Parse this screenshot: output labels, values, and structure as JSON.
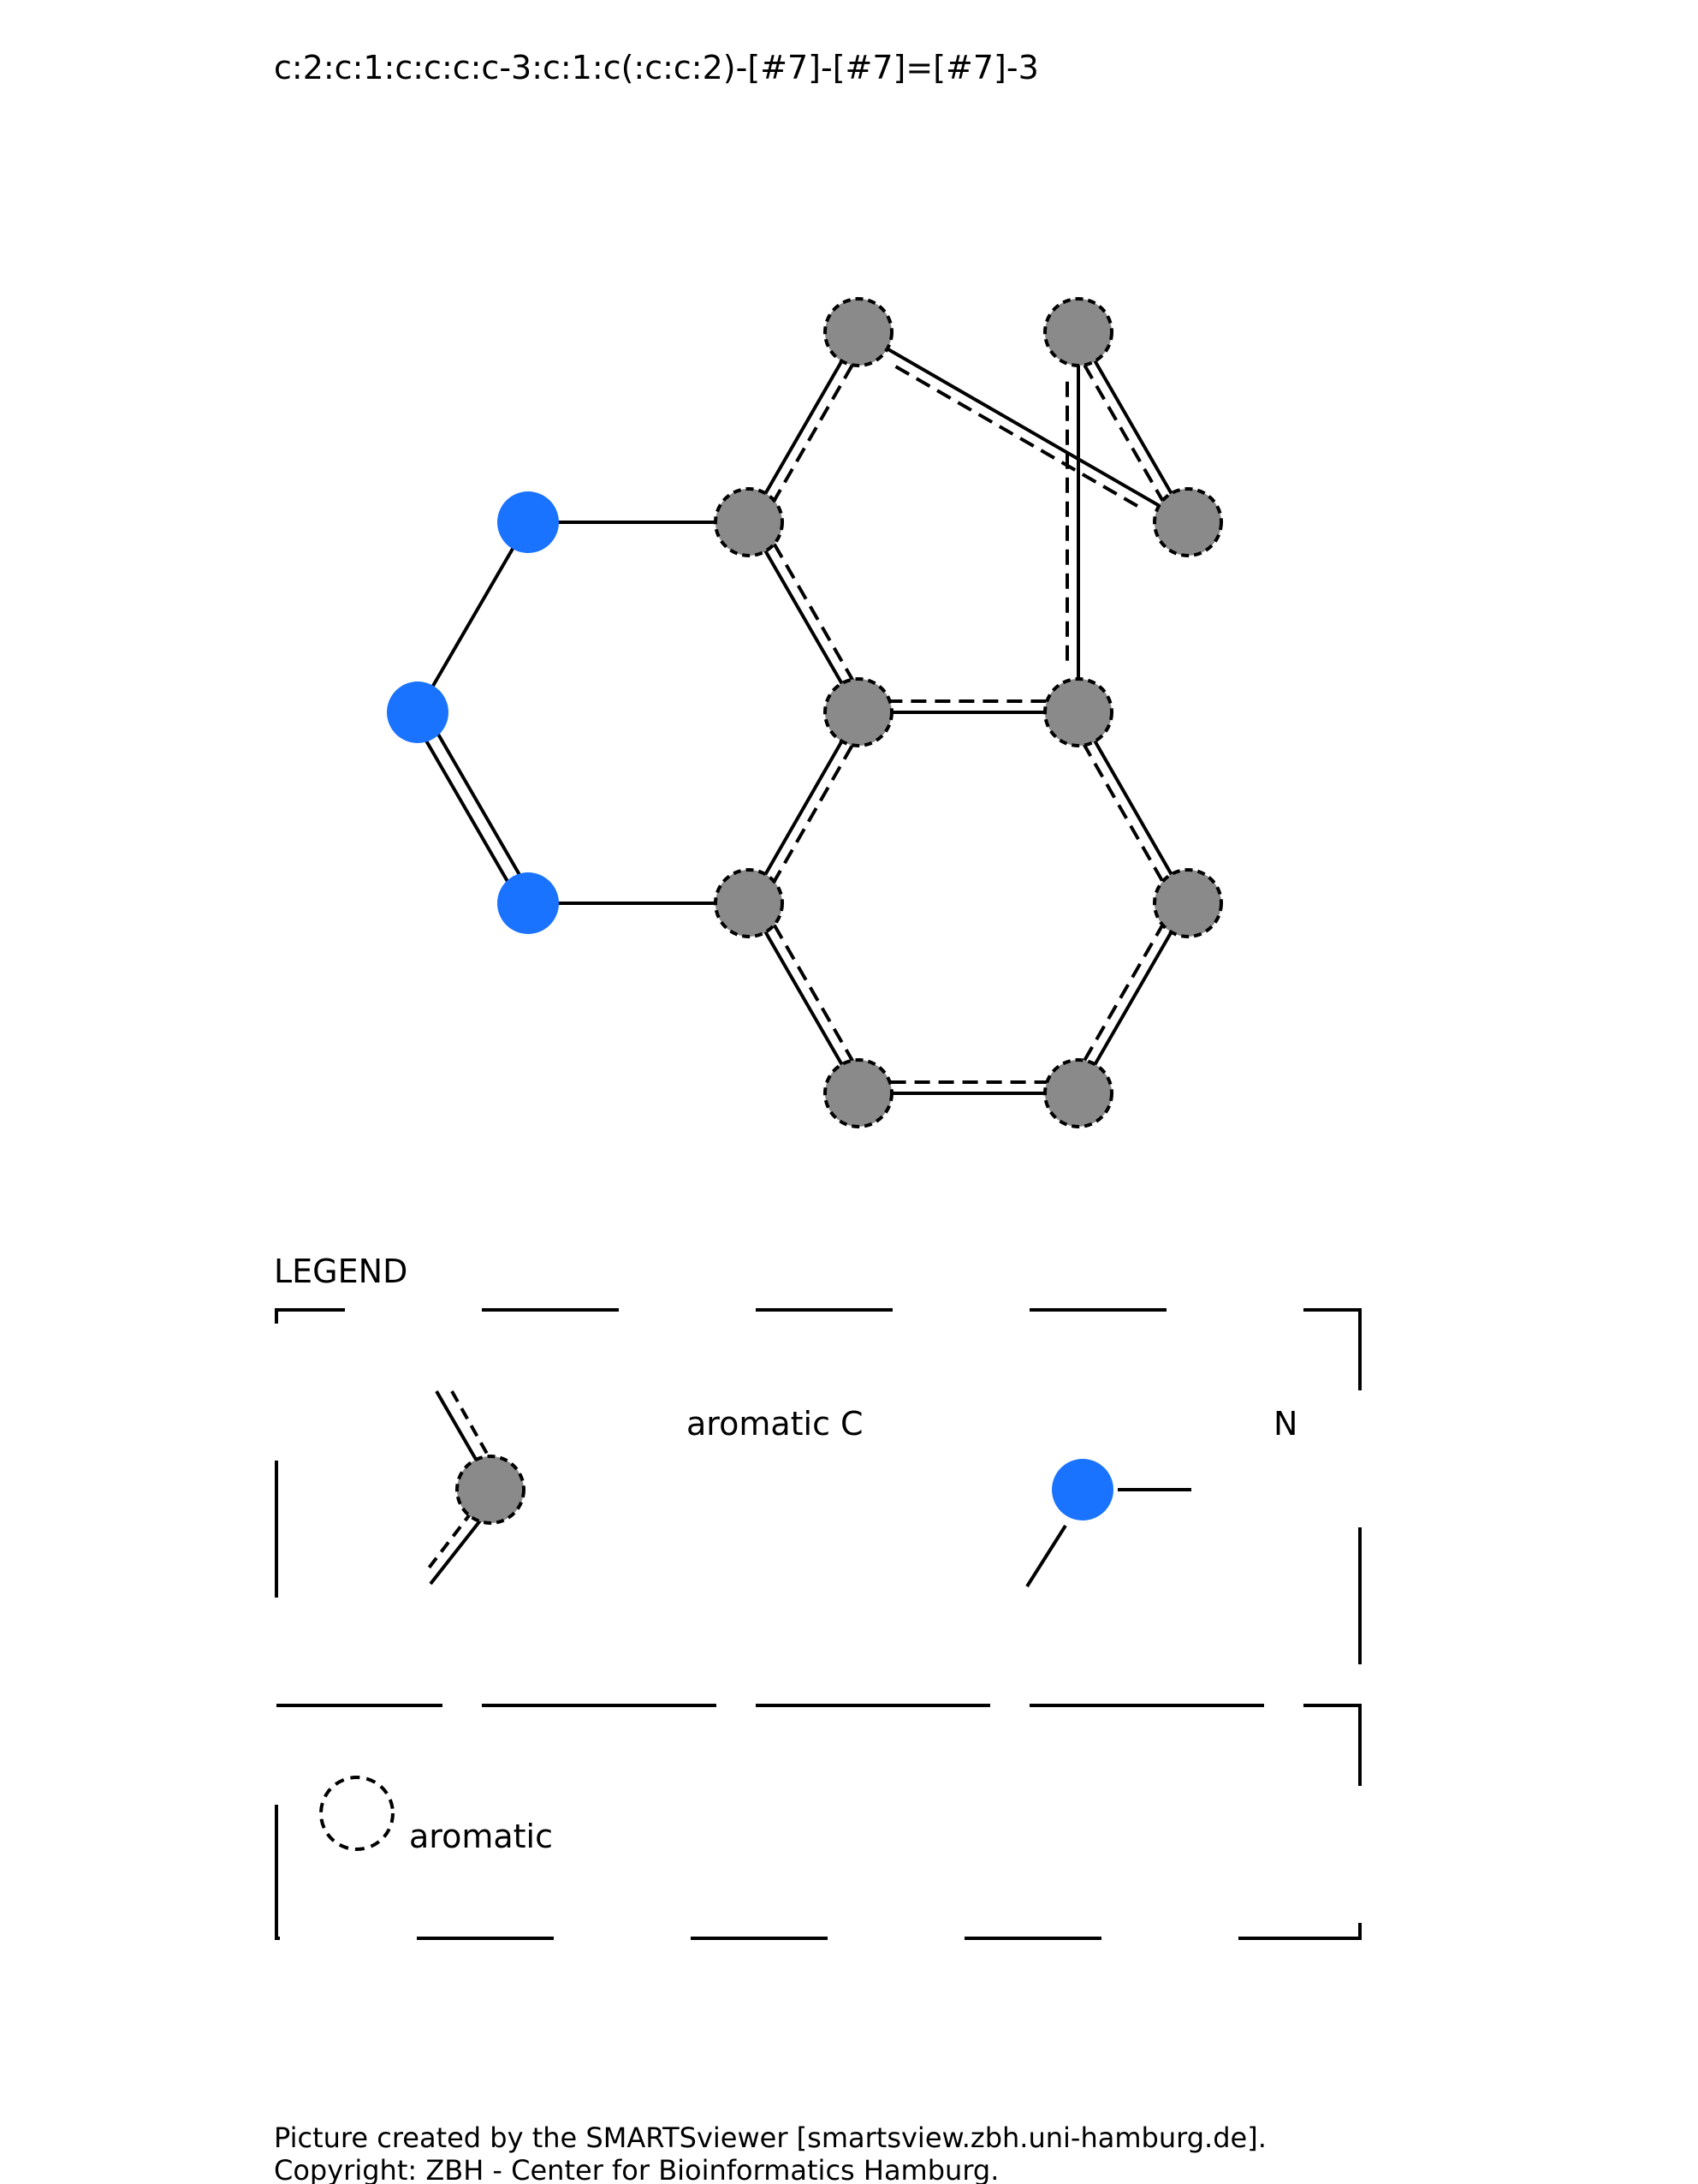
{
  "smarts": "c:2:c:1:c:c:c:c-3:c:1:c(:c:c:2)-[#7]-[#7]=[#7]-3",
  "legend": {
    "title": "LEGEND",
    "aromatic_c_label": "aromatic C",
    "nitrogen_label": "N",
    "aromatic_label": "aromatic"
  },
  "footer": {
    "line1": "Picture created by the SMARTSviewer [smartsview.zbh.uni-hamburg.de].",
    "line2": "Copyright: ZBH - Center for Bioinformatics Hamburg."
  },
  "colors": {
    "carbon": "#8a8a8a",
    "nitrogen": "#1a73ff",
    "bond": "#000000"
  },
  "molecule": {
    "atoms": [
      {
        "id": 1,
        "element": "C",
        "aromatic": true
      },
      {
        "id": 2,
        "element": "C",
        "aromatic": true
      },
      {
        "id": 3,
        "element": "C",
        "aromatic": true
      },
      {
        "id": 4,
        "element": "C",
        "aromatic": true
      },
      {
        "id": 5,
        "element": "C",
        "aromatic": true
      },
      {
        "id": 6,
        "element": "C",
        "aromatic": true
      },
      {
        "id": 7,
        "element": "C",
        "aromatic": true
      },
      {
        "id": 8,
        "element": "C",
        "aromatic": true
      },
      {
        "id": 9,
        "element": "C",
        "aromatic": true
      },
      {
        "id": 10,
        "element": "C",
        "aromatic": true
      },
      {
        "id": 11,
        "element": "N",
        "aromatic": false
      },
      {
        "id": 12,
        "element": "N",
        "aromatic": false
      },
      {
        "id": 13,
        "element": "N",
        "aromatic": false
      }
    ],
    "bonds": [
      {
        "a": 1,
        "b": 2,
        "type": "aromatic"
      },
      {
        "a": 2,
        "b": 3,
        "type": "aromatic"
      },
      {
        "a": 3,
        "b": 4,
        "type": "aromatic"
      },
      {
        "a": 4,
        "b": 5,
        "type": "aromatic"
      },
      {
        "a": 5,
        "b": 6,
        "type": "aromatic"
      },
      {
        "a": 6,
        "b": 7,
        "type": "aromatic"
      },
      {
        "a": 7,
        "b": 2,
        "type": "aromatic"
      },
      {
        "a": 7,
        "b": 8,
        "type": "aromatic"
      },
      {
        "a": 8,
        "b": 9,
        "type": "aromatic"
      },
      {
        "a": 9,
        "b": 10,
        "type": "aromatic"
      },
      {
        "a": 10,
        "b": 1,
        "type": "aromatic"
      },
      {
        "a": 8,
        "b": 11,
        "type": "single"
      },
      {
        "a": 11,
        "b": 12,
        "type": "single"
      },
      {
        "a": 12,
        "b": 13,
        "type": "double"
      },
      {
        "a": 13,
        "b": 6,
        "type": "single"
      }
    ]
  }
}
